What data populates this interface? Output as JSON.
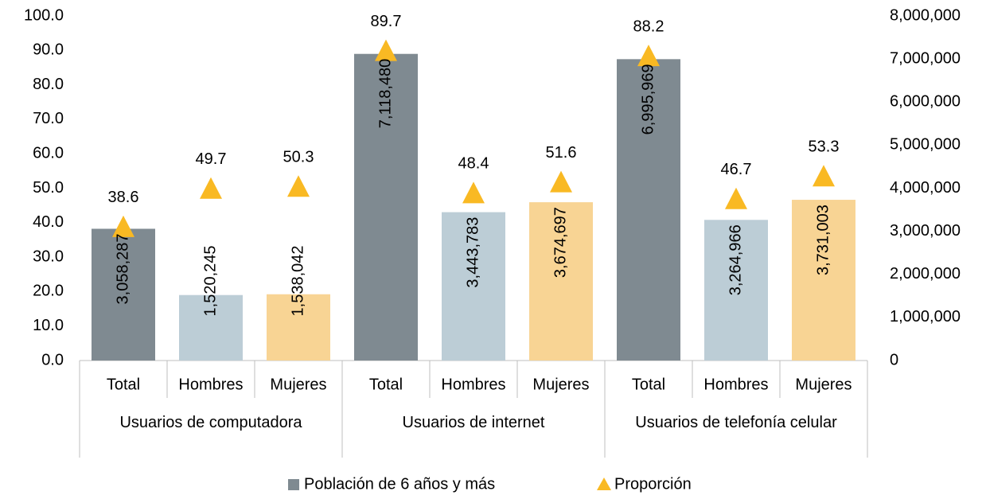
{
  "chart_data": {
    "type": "bar",
    "categories": [
      "Total",
      "Hombres",
      "Mujeres",
      "Total",
      "Hombres",
      "Mujeres",
      "Total",
      "Hombres",
      "Mujeres"
    ],
    "groups": [
      "Usuarios de computadora",
      "Usuarios de internet",
      "Usuarios de telefonía celular"
    ],
    "series": [
      {
        "name": "Población de 6 años y más",
        "type": "bar",
        "axis": "y2",
        "color": "#7f8a91",
        "colors": [
          "#7f8a91",
          "#bccdd6",
          "#f8d494",
          "#7f8a91",
          "#bccdd6",
          "#f8d494",
          "#7f8a91",
          "#bccdd6",
          "#f8d494"
        ],
        "values": [
          3058287,
          1520245,
          1538042,
          7118480,
          3443783,
          3674697,
          6995969,
          3264966,
          3731003
        ],
        "value_labels": [
          "3,058,287",
          "1,520,245",
          "1,538,042",
          "7,118,480",
          "3,443,783",
          "3,674,697",
          "6,995,969",
          "3,264,966",
          "3,731,003"
        ]
      },
      {
        "name": "Proporción",
        "type": "triangle",
        "axis": "y",
        "color": "#f9b923",
        "values": [
          38.6,
          49.7,
          50.3,
          89.7,
          48.4,
          51.6,
          88.2,
          46.7,
          53.3
        ]
      }
    ],
    "ylim": [
      0,
      100
    ],
    "yticks": [
      {
        "value": 0,
        "label": "0.0"
      },
      {
        "value": 10,
        "label": "10.0"
      },
      {
        "value": 20,
        "label": "20.0"
      },
      {
        "value": 30,
        "label": "30.0"
      },
      {
        "value": 40,
        "label": "40.0"
      },
      {
        "value": 50,
        "label": "50.0"
      },
      {
        "value": 60,
        "label": "60.0"
      },
      {
        "value": 70,
        "label": "70.0"
      },
      {
        "value": 80,
        "label": "80.0"
      },
      {
        "value": 90,
        "label": "90.0"
      },
      {
        "value": 100,
        "label": "100.0"
      }
    ],
    "y2lim": [
      0,
      8000000
    ],
    "y2ticks": [
      0,
      {
        "value": 1000000,
        "label": "1,000,000"
      },
      {
        "value": 2000000,
        "label": "2,000,000"
      },
      {
        "value": 3000000,
        "label": "3,000,000"
      },
      {
        "value": 4000000,
        "label": "4,000,000"
      },
      {
        "value": 5000000,
        "label": "5,000,000"
      },
      {
        "value": 6000000,
        "label": "6,000,000"
      },
      {
        "value": 7000000,
        "label": "7,000,000"
      },
      {
        "value": 8000000,
        "label": "8,000,000"
      }
    ],
    "legend": "bottom"
  }
}
